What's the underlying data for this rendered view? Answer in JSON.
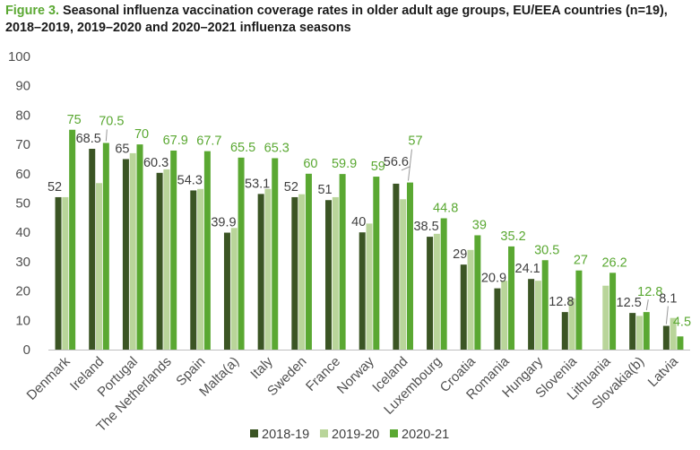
{
  "title": {
    "prefix": "Figure 3.",
    "text": "Seasonal influenza vaccination coverage rates in older adult age groups, EU/EEA countries (n=19), 2018–2019, 2019–2020 and 2020–2021 influenza seasons"
  },
  "chart_data": {
    "type": "bar",
    "title": "Figure 3. Seasonal influenza vaccination coverage rates in older adult age groups, EU/EEA countries (n=19), 2018–2019, 2019–2020 and 2020–2021 influenza seasons",
    "xlabel": "",
    "ylabel": "",
    "ylim": [
      0,
      100
    ],
    "yticks": [
      0,
      10,
      20,
      30,
      40,
      50,
      60,
      70,
      80,
      90,
      100
    ],
    "grid": false,
    "legend_position": "bottom",
    "categories": [
      "Denmark",
      "Ireland",
      "Portugal",
      "The Netherlands",
      "Spain",
      "Malta(a)",
      "Italy",
      "Sweden",
      "France",
      "Norway",
      "Iceland",
      "Luxembourg",
      "Croatia",
      "Romania",
      "Hungary",
      "Slovenia",
      "Lithuania",
      "Slovakia(b)",
      "Latvia"
    ],
    "series": [
      {
        "name": "2018-19",
        "color": "#3b5524",
        "values": [
          52,
          68.5,
          65,
          60.3,
          54.3,
          39.9,
          53.1,
          52,
          51,
          40,
          56.6,
          38.5,
          29,
          20.9,
          24.1,
          12.8,
          null,
          12.5,
          8.1
        ],
        "labels": [
          "52",
          "68.5",
          "65",
          "60.3",
          "54.3",
          "39.9",
          "53.1",
          "52",
          "51",
          "40",
          "56.6",
          "38.5",
          "29",
          "20.9",
          "24.1",
          "12.8",
          "",
          "12.5",
          "8.1"
        ]
      },
      {
        "name": "2019-20",
        "color": "#b9d59a",
        "values": [
          52,
          56.8,
          67,
          61.5,
          54.8,
          41.5,
          54.8,
          53,
          52,
          43,
          51.3,
          39.5,
          34,
          23.5,
          23.5,
          17.5,
          21.8,
          11.5,
          10.8
        ],
        "labels": []
      },
      {
        "name": "2020-21",
        "color": "#5aa832",
        "values": [
          75,
          70.5,
          70,
          67.9,
          67.7,
          65.5,
          65.3,
          60,
          59.9,
          59,
          57,
          44.8,
          39,
          35.2,
          30.5,
          27,
          26.2,
          12.8,
          4.5
        ],
        "labels": [
          "75",
          "70.5",
          "70",
          "67.9",
          "67.7",
          "65.5",
          "65.3",
          "60",
          "59.9",
          "59",
          "57",
          "44.8",
          "39",
          "35.2",
          "30.5",
          "27",
          "26.2",
          "12.8",
          "4.5"
        ]
      }
    ]
  }
}
